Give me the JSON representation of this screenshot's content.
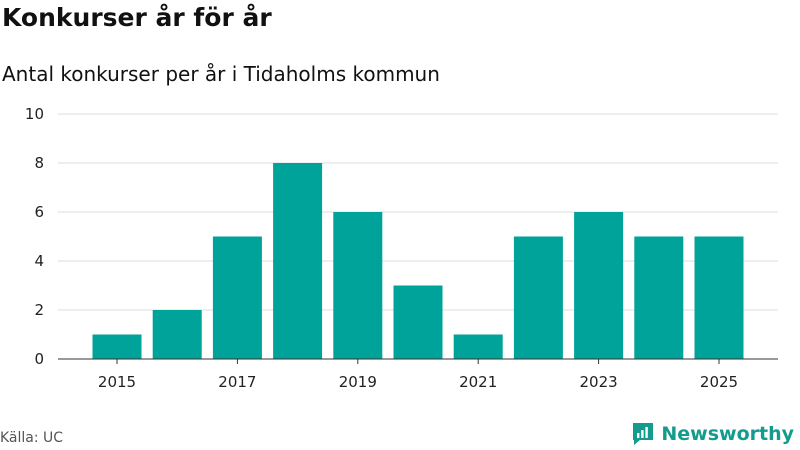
{
  "header": {
    "title": "Konkurser år för år",
    "subtitle": "Antal konkurser per år i Tidaholms kommun"
  },
  "footer": {
    "source": "Källa: UC",
    "brand": "Newsworthy"
  },
  "colors": {
    "bar": "#00a399",
    "brand": "#139c8e",
    "grid": "#dddddd",
    "axis": "#333333"
  },
  "chart_data": {
    "type": "bar",
    "title": "Konkurser år för år",
    "subtitle": "Antal konkurser per år i Tidaholms kommun",
    "xlabel": "",
    "ylabel": "",
    "categories": [
      "2015",
      "2016",
      "2017",
      "2018",
      "2019",
      "2020",
      "2021",
      "2022",
      "2023",
      "2024",
      "2025"
    ],
    "values": [
      1,
      2,
      5,
      8,
      6,
      3,
      1,
      5,
      6,
      5,
      5
    ],
    "ylim": [
      0,
      10
    ],
    "yticks": [
      "0",
      "2",
      "4",
      "6",
      "8",
      "10"
    ],
    "xticks": [
      "2015",
      "2017",
      "2019",
      "2021",
      "2023",
      "2025"
    ],
    "grid": true,
    "source": "Källa: UC"
  }
}
